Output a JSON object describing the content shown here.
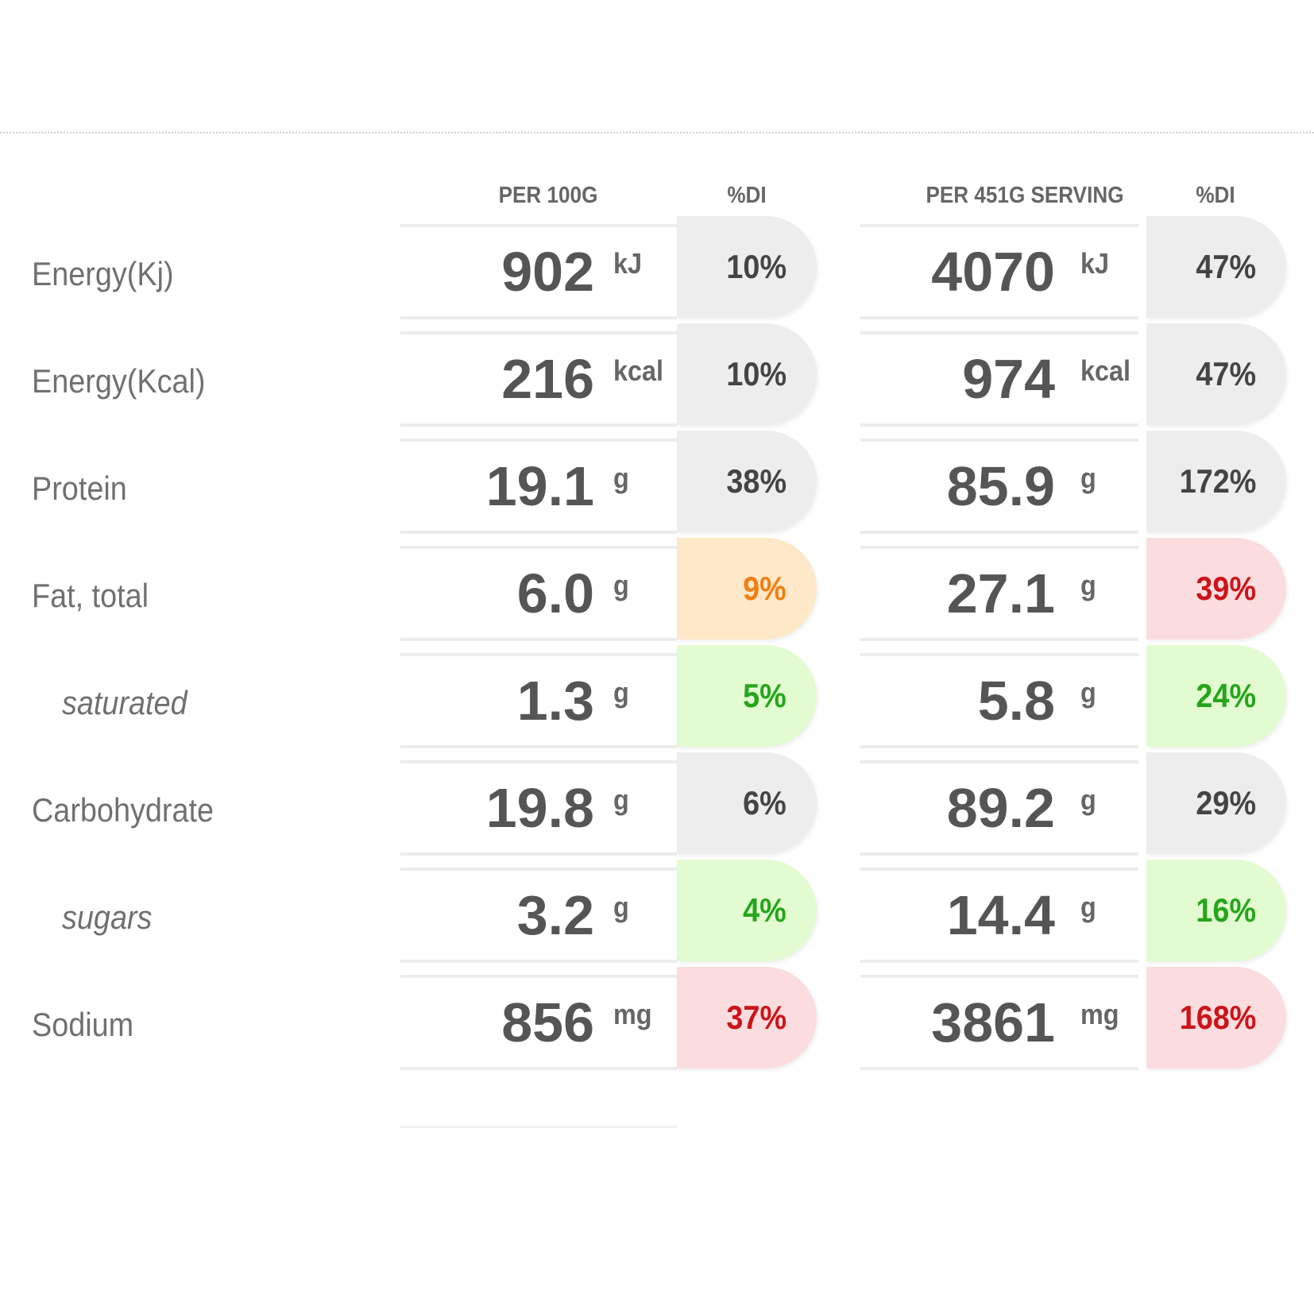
{
  "headers": {
    "per100": "PER 100G",
    "di100": "%DI",
    "perServing": "PER 451G SERVING",
    "diServing": "%DI"
  },
  "colors": {
    "neutral_bg": "#ededed",
    "orange_bg": "#fde9c8",
    "orange_text": "#f07f12",
    "green_bg": "#e2fbd0",
    "green_text": "#26a51c",
    "red_bg": "#fbdde0",
    "red_text": "#cc1418"
  },
  "rows": [
    {
      "label": "Energy(Kj)",
      "sub": false,
      "per100": "902",
      "unit100": "kJ",
      "di100": "10%",
      "di100_level": "neutral",
      "serving": "4070",
      "unitServing": "kJ",
      "diServing": "47%",
      "diServing_level": "neutral"
    },
    {
      "label": "Energy(Kcal)",
      "sub": false,
      "per100": "216",
      "unit100": "kcal",
      "di100": "10%",
      "di100_level": "neutral",
      "serving": "974",
      "unitServing": "kcal",
      "diServing": "47%",
      "diServing_level": "neutral"
    },
    {
      "label": "Protein",
      "sub": false,
      "per100": "19.1",
      "unit100": "g",
      "di100": "38%",
      "di100_level": "neutral",
      "serving": "85.9",
      "unitServing": "g",
      "diServing": "172%",
      "diServing_level": "neutral"
    },
    {
      "label": "Fat, total",
      "sub": false,
      "per100": "6.0",
      "unit100": "g",
      "di100": "9%",
      "di100_level": "orange",
      "serving": "27.1",
      "unitServing": "g",
      "diServing": "39%",
      "diServing_level": "red"
    },
    {
      "label": "saturated",
      "sub": true,
      "per100": "1.3",
      "unit100": "g",
      "di100": "5%",
      "di100_level": "green",
      "serving": "5.8",
      "unitServing": "g",
      "diServing": "24%",
      "diServing_level": "green"
    },
    {
      "label": "Carbohydrate",
      "sub": false,
      "per100": "19.8",
      "unit100": "g",
      "di100": "6%",
      "di100_level": "neutral",
      "serving": "89.2",
      "unitServing": "g",
      "diServing": "29%",
      "diServing_level": "neutral"
    },
    {
      "label": "sugars",
      "sub": true,
      "per100": "3.2",
      "unit100": "g",
      "di100": "4%",
      "di100_level": "green",
      "serving": "14.4",
      "unitServing": "g",
      "diServing": "16%",
      "diServing_level": "green"
    },
    {
      "label": "Sodium",
      "sub": false,
      "per100": "856",
      "unit100": "mg",
      "di100": "37%",
      "di100_level": "red",
      "serving": "3861",
      "unitServing": "mg",
      "diServing": "168%",
      "diServing_level": "red"
    }
  ]
}
